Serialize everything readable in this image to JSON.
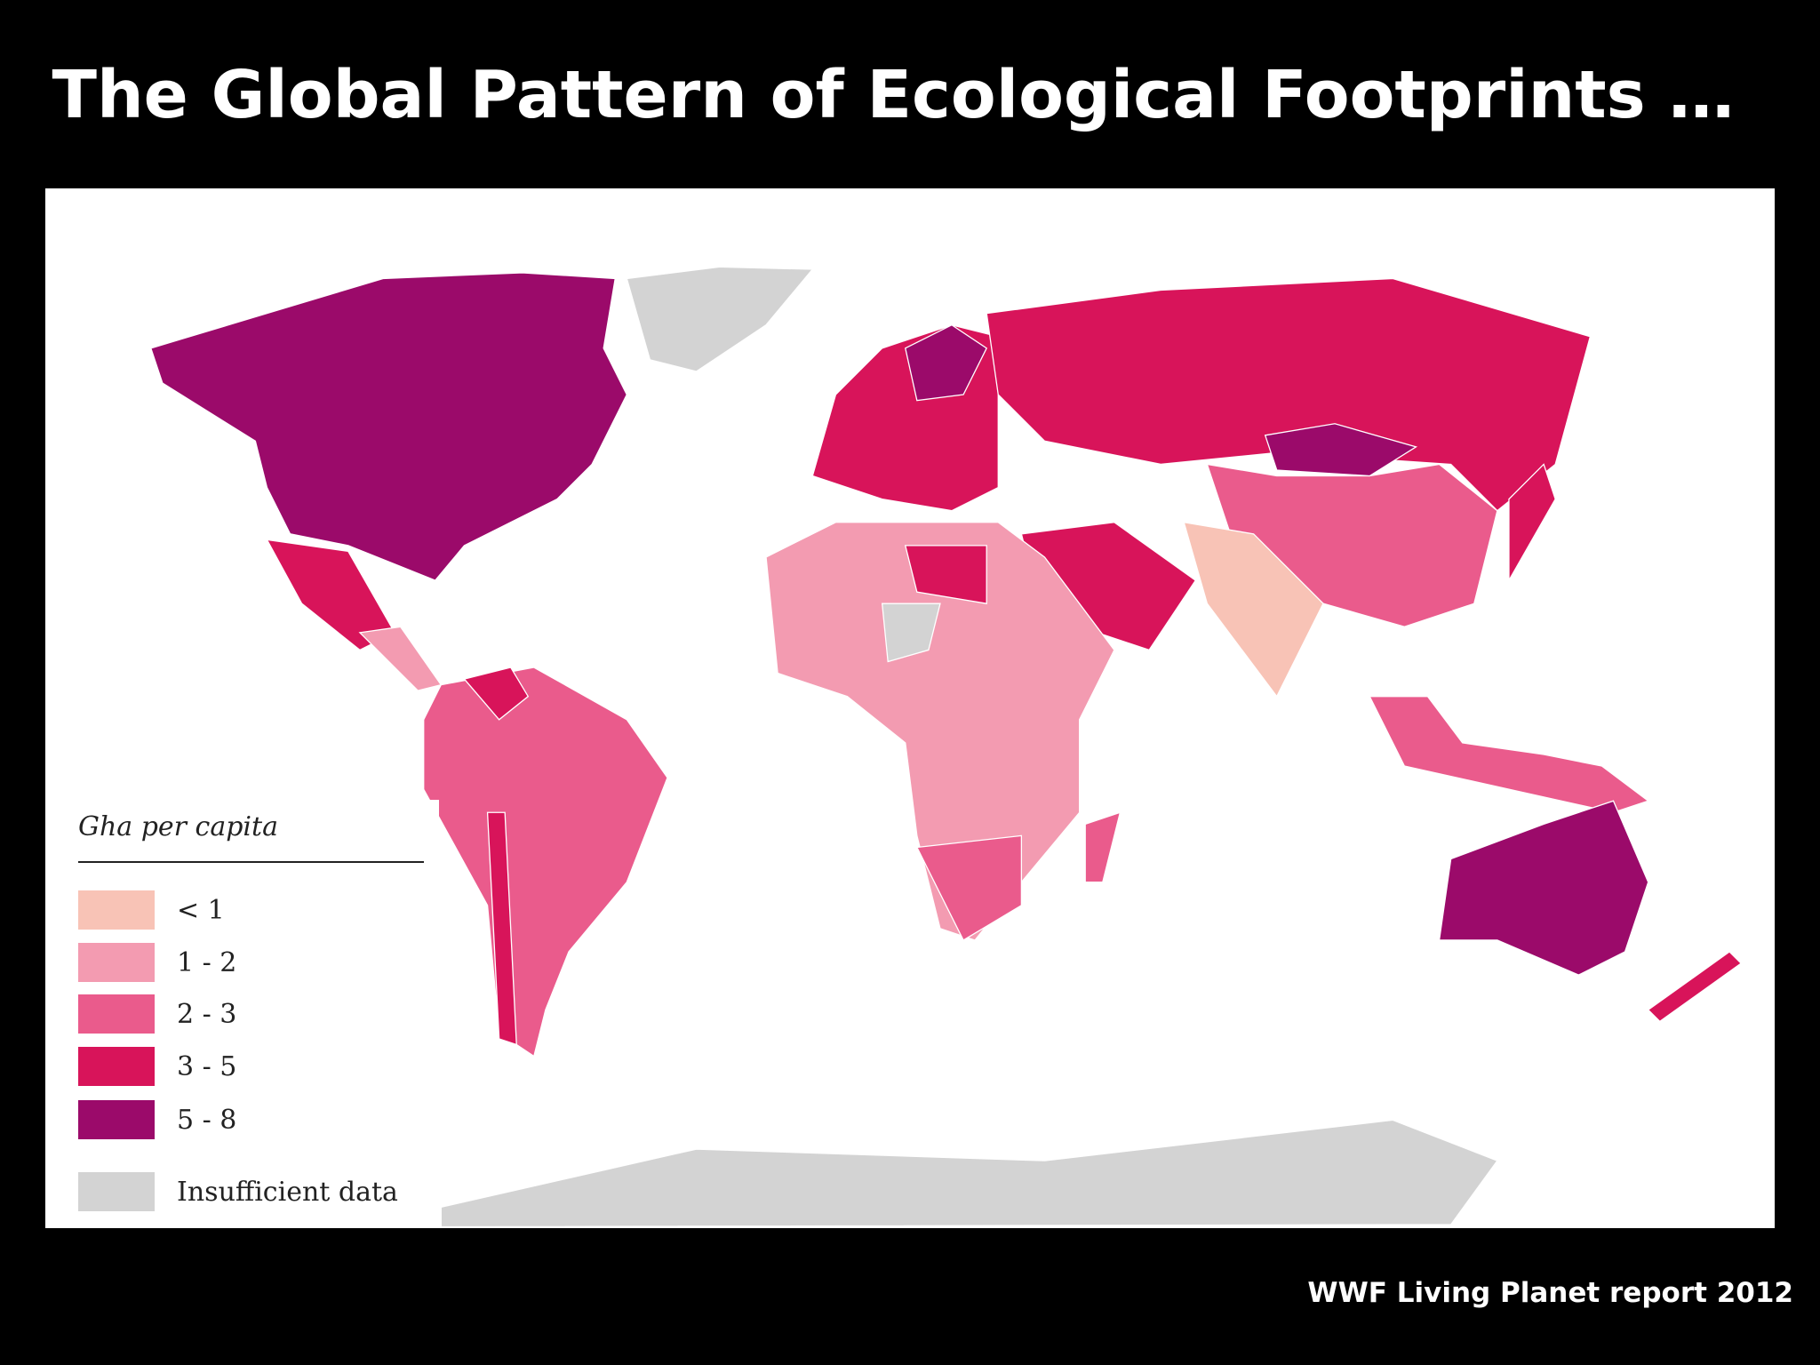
{
  "title": "The Global Pattern of Ecological Footprints …",
  "source": "WWF Living Planet report 2012",
  "legend": {
    "title": "Gha per capita",
    "items": [
      {
        "label": "< 1",
        "color": "#f8c3b6"
      },
      {
        "label": "1 - 2",
        "color": "#f39bb1"
      },
      {
        "label": "2 - 3",
        "color": "#ea5b8c"
      },
      {
        "label": "3 - 5",
        "color": "#d8145a"
      },
      {
        "label": "5 - 8",
        "color": "#9b0a6a"
      },
      {
        "label": "Insufficient data",
        "color": "#d3d3d3"
      }
    ]
  }
}
